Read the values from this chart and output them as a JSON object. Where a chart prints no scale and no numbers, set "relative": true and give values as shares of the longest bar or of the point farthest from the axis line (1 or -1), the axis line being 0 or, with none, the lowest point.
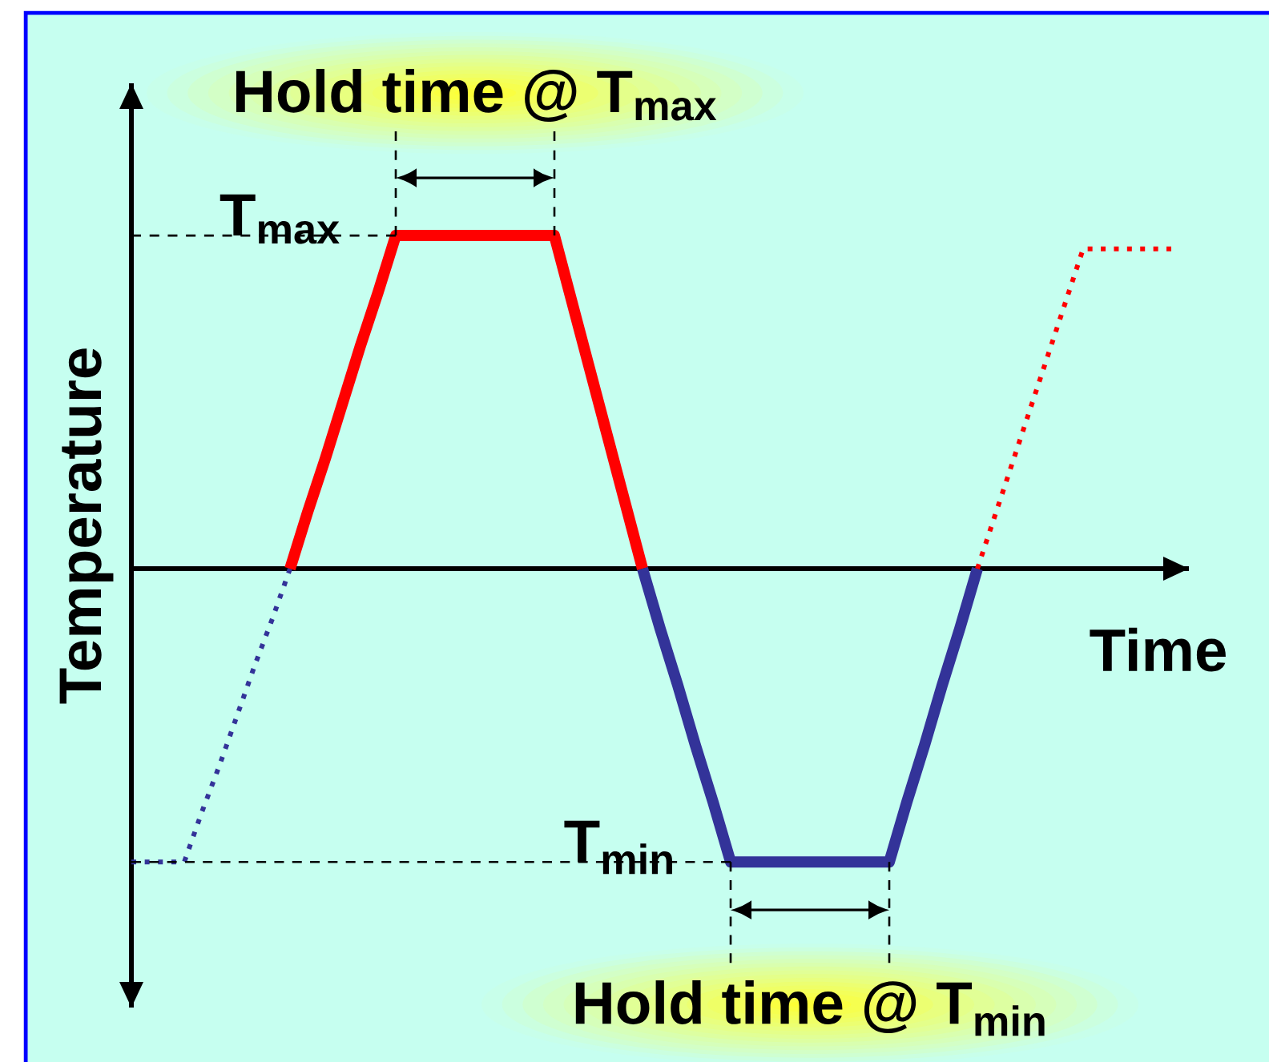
{
  "chart_data": {
    "type": "line",
    "relative": true,
    "xlabel": "Time",
    "ylabel": "Temperature",
    "categories": [
      null,
      null,
      null,
      null,
      null,
      null,
      null,
      null,
      null,
      null,
      null,
      null,
      null,
      null,
      null,
      null,
      null,
      null,
      null,
      null,
      null,
      null,
      null,
      null,
      null,
      null,
      null,
      null,
      null,
      null,
      null,
      null,
      null,
      null,
      null,
      null,
      null,
      null,
      null,
      null,
      null,
      null,
      null,
      null,
      null,
      null,
      null,
      null,
      null,
      null,
      null,
      null,
      null,
      null,
      null,
      null,
      null,
      null,
      null,
      null,
      null
    ],
    "series": [
      {
        "color": "#333399",
        "line_style": "dotted",
        "values": [
          -0.88,
          -0.88,
          -0.88,
          -0.88,
          -0.73,
          -0.59,
          -0.44,
          -0.29,
          -0.15,
          0,
          null,
          null,
          null,
          null,
          null,
          null,
          null,
          null,
          null,
          null,
          null,
          null,
          null,
          null,
          null,
          null,
          null,
          null,
          null,
          null,
          null,
          null,
          null,
          null,
          null,
          null,
          null,
          null,
          null,
          null,
          null,
          null,
          null,
          null,
          null,
          null,
          null,
          null,
          null,
          null,
          null,
          null,
          null,
          null,
          null,
          null,
          null,
          null,
          null,
          null,
          null
        ]
      },
      {
        "color": "#ff0000",
        "line_style": "solid",
        "values": [
          null,
          null,
          null,
          null,
          null,
          null,
          null,
          null,
          null,
          0,
          0.17,
          0.33,
          0.5,
          0.67,
          0.83,
          1,
          1,
          1,
          1,
          1,
          1,
          1,
          1,
          1,
          1,
          0.8,
          0.6,
          0.4,
          0.2,
          0,
          null,
          null,
          null,
          null,
          null,
          null,
          null,
          null,
          null,
          null,
          null,
          null,
          null,
          null,
          null,
          null,
          null,
          null,
          null,
          null,
          null,
          null,
          null,
          null,
          null,
          null,
          null,
          null,
          null,
          null,
          null
        ]
      },
      {
        "color": "#333399",
        "line_style": "solid",
        "values": [
          null,
          null,
          null,
          null,
          null,
          null,
          null,
          null,
          null,
          null,
          null,
          null,
          null,
          null,
          null,
          null,
          null,
          null,
          null,
          null,
          null,
          null,
          null,
          null,
          null,
          null,
          null,
          null,
          null,
          0,
          -0.18,
          -0.35,
          -0.53,
          -0.7,
          -0.88,
          -0.88,
          -0.88,
          -0.88,
          -0.88,
          -0.88,
          -0.88,
          -0.88,
          -0.88,
          -0.88,
          -0.7,
          -0.53,
          -0.35,
          -0.18,
          0,
          null,
          null,
          null,
          null,
          null,
          null,
          null,
          null,
          null,
          null,
          null,
          null
        ]
      },
      {
        "color": "#ff0000",
        "line_style": "dotted",
        "values": [
          null,
          null,
          null,
          null,
          null,
          null,
          null,
          null,
          null,
          null,
          null,
          null,
          null,
          null,
          null,
          null,
          null,
          null,
          null,
          null,
          null,
          null,
          null,
          null,
          null,
          null,
          null,
          null,
          null,
          null,
          null,
          null,
          null,
          null,
          null,
          null,
          null,
          null,
          null,
          null,
          null,
          null,
          null,
          null,
          null,
          null,
          null,
          null,
          0,
          0.16,
          0.32,
          0.48,
          0.64,
          0.8,
          0.96,
          0.96,
          0.96,
          0.96,
          0.96,
          0.96,
          null
        ]
      }
    ],
    "ref_lines": [
      {
        "axis": "y",
        "value": 1,
        "label": "T$_{max}$",
        "color": "#000000",
        "line_style": "dashed"
      },
      {
        "axis": "y",
        "value": -0.88,
        "label": "T$_{min}$",
        "color": "#000000",
        "line_style": "dashed"
      }
    ],
    "annotations": [
      {
        "text": "Hold time @ T$_{max}$",
        "y": 1
      },
      {
        "text": "Hold time @ T$_{min}$",
        "y": -0.88
      }
    ]
  }
}
